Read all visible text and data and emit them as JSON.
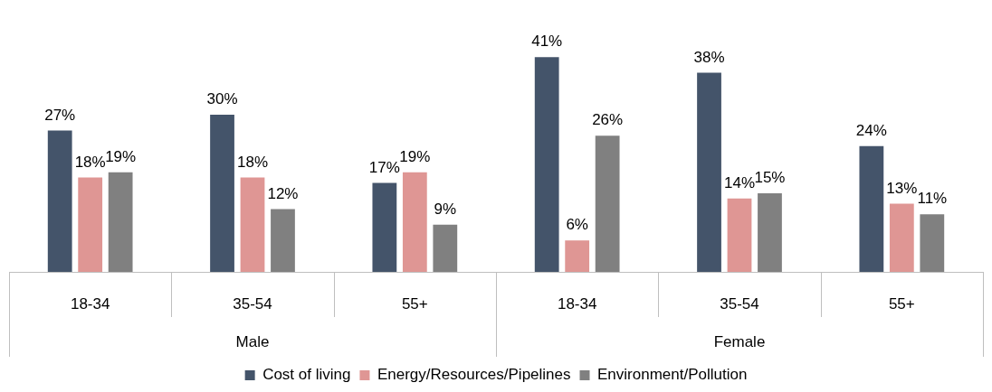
{
  "chart_data": {
    "type": "bar",
    "categories": [
      "18-34",
      "35-54",
      "55+",
      "18-34",
      "35-54",
      "55+"
    ],
    "annotations": [
      "Male",
      "Female"
    ],
    "series": [
      {
        "name": "Cost of living",
        "color": "#44546a",
        "values": [
          27,
          30,
          17,
          41,
          38,
          24
        ],
        "value_labels": [
          "27%",
          "30%",
          "17%",
          "41%",
          "38%",
          "24%"
        ]
      },
      {
        "name": "Energy/Resources/Pipelines",
        "color": "#df9694",
        "values": [
          18,
          18,
          19,
          6,
          14,
          13
        ],
        "value_labels": [
          "18%",
          "18%",
          "19%",
          "6%",
          "14%",
          "13%"
        ]
      },
      {
        "name": "Environment/Pollution",
        "color": "#808080",
        "values": [
          19,
          12,
          9,
          26,
          15,
          11
        ],
        "value_labels": [
          "19%",
          "12%",
          "9%",
          "26%",
          "15%",
          "11%"
        ]
      }
    ],
    "legend": "bottom",
    "grid": false
  }
}
